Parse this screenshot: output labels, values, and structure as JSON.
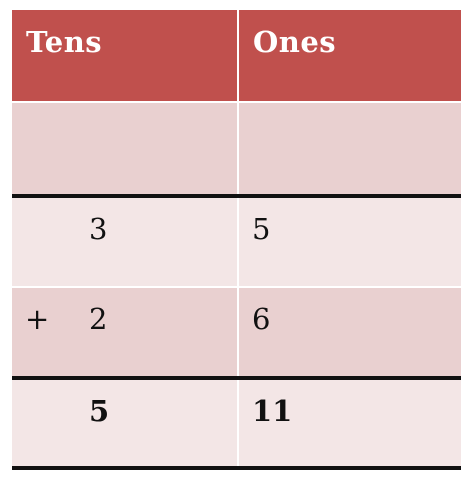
{
  "table": {
    "headers": {
      "tens": "Tens",
      "ones": "Ones"
    },
    "rows": [
      {
        "operator": "",
        "tens": "",
        "ones": ""
      },
      {
        "operator": "",
        "tens": "3",
        "ones": "5"
      },
      {
        "operator": "+",
        "tens": "2",
        "ones": "6"
      }
    ],
    "sum": {
      "tens": "5",
      "ones": "11"
    }
  },
  "colors": {
    "header": "#c0504d",
    "row_dark": "#e9d0d0",
    "row_light": "#f3e6e6",
    "rule": "#111111"
  }
}
